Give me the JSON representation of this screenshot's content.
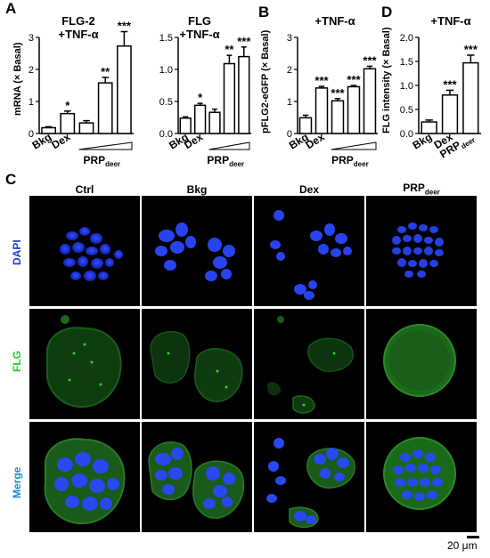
{
  "panel_labels": {
    "a": "A",
    "b": "B",
    "c": "C",
    "d": "D"
  },
  "chart_data": [
    {
      "id": "fig-a1",
      "type": "bar",
      "title": "FLG-2\n+TNF-α",
      "ylabel": "mRNA (× Basal)",
      "ylim": [
        0,
        3
      ],
      "yticks": [
        0,
        1,
        2,
        3
      ],
      "categories": [
        "Bkg",
        "Dex",
        "PRP1",
        "PRP2",
        "PRP3"
      ],
      "values": [
        0.18,
        0.62,
        0.33,
        1.58,
        2.73
      ],
      "errors": [
        0.03,
        0.08,
        0.07,
        0.17,
        0.45
      ],
      "significance": [
        "",
        "*",
        "",
        "**",
        "***"
      ],
      "x_tick_labels": [
        "Bkg",
        "Dex"
      ],
      "group_label": "PRP",
      "group_sub": "deer"
    },
    {
      "id": "fig-a2",
      "type": "bar",
      "title": "FLG\n+TNF-α",
      "ylabel": "",
      "ylim": [
        0,
        1.5
      ],
      "yticks": [
        0,
        0.5,
        1.0,
        1.5
      ],
      "categories": [
        "Bkg",
        "Dex",
        "PRP1",
        "PRP2",
        "PRP3"
      ],
      "values": [
        0.24,
        0.44,
        0.33,
        1.09,
        1.2
      ],
      "errors": [
        0.02,
        0.03,
        0.05,
        0.13,
        0.15
      ],
      "significance": [
        "",
        "*",
        "",
        "**",
        "***"
      ],
      "x_tick_labels": [
        "Bkg",
        "Dex"
      ],
      "group_label": "PRP",
      "group_sub": "deer"
    },
    {
      "id": "fig-b",
      "type": "bar",
      "title": "+TNF-α",
      "ylabel": "pFLG2-eGFP (× Basal)",
      "ylim": [
        0,
        3
      ],
      "yticks": [
        0,
        1,
        2,
        3
      ],
      "categories": [
        "Bkg",
        "Dex",
        "PRP1",
        "PRP2",
        "PRP3"
      ],
      "values": [
        0.49,
        1.42,
        1.02,
        1.46,
        2.02
      ],
      "errors": [
        0.08,
        0.05,
        0.07,
        0.04,
        0.08
      ],
      "significance": [
        "",
        "***",
        "***",
        "***",
        "***"
      ],
      "x_tick_labels": [
        "Bkg",
        "Dex"
      ],
      "group_label": "PRP",
      "group_sub": "deer"
    },
    {
      "id": "fig-d",
      "type": "bar",
      "title": "+TNF-α",
      "ylabel": "FLG intensity (× Basal)",
      "ylim": [
        0,
        2
      ],
      "yticks": [
        0,
        0.5,
        1.0,
        1.5,
        2.0
      ],
      "categories": [
        "Bkg",
        "Dex",
        "PRP"
      ],
      "values": [
        0.24,
        0.8,
        1.47
      ],
      "errors": [
        0.04,
        0.1,
        0.16
      ],
      "significance": [
        "",
        "***",
        "***"
      ],
      "x_tick_labels": [
        "Bkg",
        "Dex",
        "PRP"
      ],
      "group_sub": "deer"
    }
  ],
  "micrograph": {
    "columns": [
      "Ctrl",
      "Bkg",
      "Dex",
      "PRP"
    ],
    "columns_sub": [
      "",
      "",
      "",
      "deer"
    ],
    "rows": [
      "DAPI",
      "FLG",
      "Merge"
    ],
    "row_colors": [
      "#1f3bd8",
      "#22cc22",
      "#1a8fd0"
    ],
    "scale_bar": "20 μm"
  }
}
